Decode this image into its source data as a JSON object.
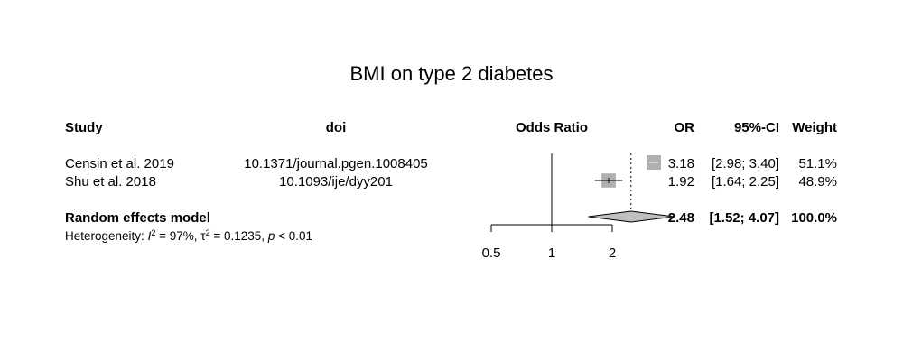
{
  "chart_data": {
    "type": "forest",
    "title": "BMI on type 2 diabetes",
    "headers": {
      "study": "Study",
      "doi": "doi",
      "effect": "Odds Ratio",
      "or": "OR",
      "ci": "95%-CI",
      "weight": "Weight"
    },
    "studies": [
      {
        "study": "Censin et al. 2019",
        "doi": "10.1371/journal.pgen.1008405",
        "or": 3.18,
        "ci_low": 2.98,
        "ci_high": 3.4,
        "or_text": "3.18",
        "ci_text": "[2.98; 3.40]",
        "weight": "51.1%"
      },
      {
        "study": "Shu et al. 2018",
        "doi": "10.1093/ije/dyy201",
        "or": 1.92,
        "ci_low": 1.64,
        "ci_high": 2.25,
        "or_text": "1.92",
        "ci_text": "[1.64; 2.25]",
        "weight": "48.9%"
      }
    ],
    "summary": {
      "label": "Random effects model",
      "or": 2.48,
      "ci_low": 1.52,
      "ci_high": 4.07,
      "or_text": "2.48",
      "ci_text": "[1.52; 4.07]",
      "weight": "100.0%"
    },
    "heterogeneity": {
      "prefix": "Heterogeneity: ",
      "i2_sym": "I",
      "i2_sup": "2",
      "i2_val": " = 97%, ",
      "tau_sym": "τ",
      "tau_sup": "2",
      "tau_val": " = 0.1235, ",
      "p_sym": "p",
      "p_val": " < 0.01"
    },
    "x_axis": {
      "scale": "log",
      "ticks": [
        0.5,
        1,
        2
      ],
      "tick_labels": [
        "0.5",
        "1",
        "2"
      ],
      "reference": 1
    },
    "colors": {
      "box": "#b0b0b0",
      "diamond": "#c0c0c0",
      "line": "#000000"
    }
  }
}
